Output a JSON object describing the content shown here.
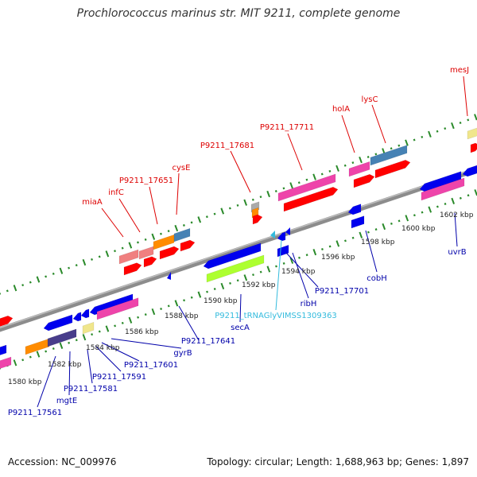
{
  "title": "Prochlorococcus marinus str. MIT 9211, complete genome",
  "footer": {
    "accession": "Accession: NC_009976",
    "summary": "Topology: circular; Length: 1,688,963 bp; Genes: 1,897"
  },
  "colors": {
    "forward_label": "#dd0000",
    "reverse_label": "#0000aa",
    "trna_label": "#33bbdd",
    "backbone": "#8c8c8c",
    "ticks": "#2a8a2a"
  },
  "scale_labels": [
    "1580 kbp",
    "1582 kbp",
    "1584 kbp",
    "1586 kbp",
    "1588 kbp",
    "1590 kbp",
    "1592 kbp",
    "1594 kbp",
    "1596 kbp",
    "1598 kbp",
    "1600 kbp",
    "1602 kbp"
  ],
  "forward_labels": [
    "miaA",
    "infC",
    "P9211_17651",
    "cysE",
    "P9211_17681",
    "P9211_17711",
    "holA",
    "lysC",
    "mesJ"
  ],
  "reverse_labels": [
    "P9211_17561",
    "mgtE",
    "P9211_17581",
    "P9211_17591",
    "P9211_17601",
    "gyrB",
    "P9211_17641",
    "secA",
    "ribH",
    "P9211_17701",
    "cobH",
    "uvrB"
  ],
  "trna_labels": [
    "P9211_tRNAGlyVIMSS1309363"
  ]
}
